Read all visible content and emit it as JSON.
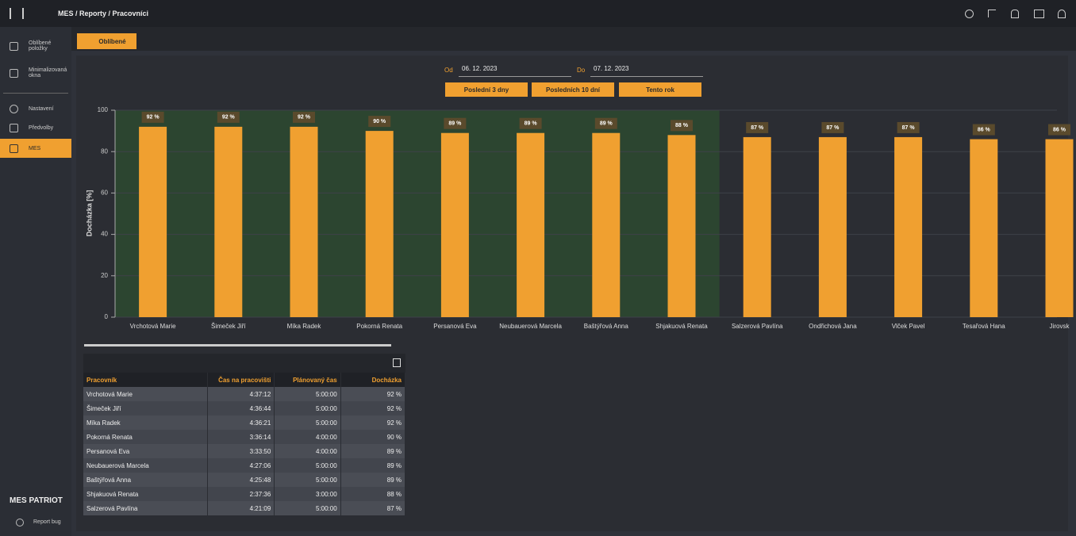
{
  "header": {
    "breadcrumb": "MES / Reporty / Pracovníci"
  },
  "sidebar": {
    "items": [
      "Oblíbené položky",
      "Minimalizovaná okna",
      "Nastavení",
      "Předvolby",
      "MES"
    ],
    "brand": "MES PATRIOT",
    "report": "Report bug"
  },
  "tab": "Oblíbené",
  "filters": {
    "from_label": "Od",
    "from": "06. 12. 2023",
    "to_label": "Do",
    "to": "07. 12. 2023",
    "buttons": [
      "Poslední 3 dny",
      "Posledních 10 dní",
      "Tento rok"
    ]
  },
  "chart_data": {
    "type": "bar",
    "ylabel": "Docházka [%]",
    "categories": [
      "Vrchotová Marie",
      "Šimeček Jiří",
      "Míka Radek",
      "Pokorná Renata",
      "Persanová Eva",
      "Neubauerová Marcela",
      "Baštýřová Anna",
      "Shjakuová Renata",
      "Salzerová Pavlína",
      "Ondřichová Jana",
      "Vlček Pavel",
      "Tesařová Hana",
      "Jirovsk"
    ],
    "values": [
      92,
      92,
      92,
      90,
      89,
      89,
      89,
      88,
      87,
      87,
      87,
      86,
      86
    ],
    "value_labels": [
      "92 %",
      "92 %",
      "92 %",
      "90 %",
      "89 %",
      "89 %",
      "89 %",
      "88 %",
      "87 %",
      "87 %",
      "87 %",
      "86 %",
      "86 %"
    ],
    "color": "#f0a030",
    "ylim": [
      0,
      100
    ],
    "yticks": [
      0,
      20,
      40,
      60,
      80,
      100
    ],
    "grid": true,
    "highlight": {
      "from": 0,
      "to": 7,
      "color": "#2c4530"
    }
  },
  "table": {
    "columns": [
      "Pracovník",
      "Čas na pracovišti",
      "Plánovaný čas",
      "Docházka"
    ],
    "rows": [
      [
        "Vrchotová Marie",
        "4:37:12",
        "5:00:00",
        "92 %"
      ],
      [
        "Šimeček Jiří",
        "4:36:44",
        "5:00:00",
        "92 %"
      ],
      [
        "Míka Radek",
        "4:36:21",
        "5:00:00",
        "92 %"
      ],
      [
        "Pokorná Renata",
        "3:36:14",
        "4:00:00",
        "90 %"
      ],
      [
        "Persanová Eva",
        "3:33:50",
        "4:00:00",
        "89 %"
      ],
      [
        "Neubauerová Marcela",
        "4:27:06",
        "5:00:00",
        "89 %"
      ],
      [
        "Baštýřová Anna",
        "4:25:48",
        "5:00:00",
        "89 %"
      ],
      [
        "Shjakuová Renata",
        "2:37:36",
        "3:00:00",
        "88 %"
      ],
      [
        "Salzerová Pavlína",
        "4:21:09",
        "5:00:00",
        "87 %"
      ]
    ]
  }
}
